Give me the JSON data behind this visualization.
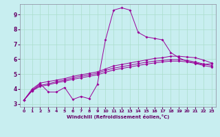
{
  "xlabel": "Windchill (Refroidissement éolien,°C)",
  "background_color": "#c8eef0",
  "grid_color": "#aaddcc",
  "line_color": "#990099",
  "xmin": -0.5,
  "xmax": 23.5,
  "ymin": 2.8,
  "ymax": 9.7,
  "yticks": [
    3,
    4,
    5,
    6,
    7,
    8,
    9
  ],
  "xticks": [
    0,
    1,
    2,
    3,
    4,
    5,
    6,
    7,
    8,
    9,
    10,
    11,
    12,
    13,
    14,
    15,
    16,
    17,
    18,
    19,
    20,
    21,
    22,
    23
  ],
  "series1_x": [
    0,
    1,
    2,
    3,
    4,
    5,
    6,
    7,
    8,
    9,
    10,
    11,
    12,
    13,
    14,
    15,
    16,
    17,
    18,
    19,
    20,
    21,
    22,
    23
  ],
  "series1_y": [
    3.25,
    3.9,
    4.35,
    3.8,
    3.8,
    4.1,
    3.3,
    3.5,
    3.35,
    4.3,
    7.3,
    9.3,
    9.45,
    9.3,
    7.8,
    7.5,
    7.4,
    7.3,
    6.45,
    6.1,
    5.85,
    5.75,
    5.65,
    5.7
  ],
  "series2_x": [
    0,
    1,
    2,
    3,
    4,
    5,
    6,
    7,
    8,
    9,
    10,
    11,
    12,
    13,
    14,
    15,
    16,
    17,
    18,
    19,
    20,
    21,
    22,
    23
  ],
  "series2_y": [
    3.25,
    4.0,
    4.4,
    4.5,
    4.6,
    4.7,
    4.85,
    4.95,
    5.05,
    5.15,
    5.35,
    5.55,
    5.65,
    5.75,
    5.85,
    5.95,
    6.05,
    6.1,
    6.2,
    6.2,
    6.15,
    6.1,
    5.95,
    5.75
  ],
  "series3_x": [
    0,
    1,
    2,
    3,
    4,
    5,
    6,
    7,
    8,
    9,
    10,
    11,
    12,
    13,
    14,
    15,
    16,
    17,
    18,
    19,
    20,
    21,
    22,
    23
  ],
  "series3_y": [
    3.25,
    3.9,
    4.25,
    4.35,
    4.5,
    4.6,
    4.75,
    4.85,
    4.95,
    5.05,
    5.25,
    5.4,
    5.5,
    5.6,
    5.7,
    5.8,
    5.87,
    5.92,
    5.97,
    5.97,
    5.92,
    5.82,
    5.68,
    5.58
  ],
  "series4_x": [
    0,
    1,
    2,
    3,
    4,
    5,
    6,
    7,
    8,
    9,
    10,
    11,
    12,
    13,
    14,
    15,
    16,
    17,
    18,
    19,
    20,
    21,
    22,
    23
  ],
  "series4_y": [
    3.25,
    3.87,
    4.18,
    4.28,
    4.42,
    4.52,
    4.65,
    4.75,
    4.85,
    4.95,
    5.12,
    5.28,
    5.38,
    5.48,
    5.58,
    5.67,
    5.75,
    5.82,
    5.87,
    5.87,
    5.82,
    5.72,
    5.58,
    5.48
  ]
}
